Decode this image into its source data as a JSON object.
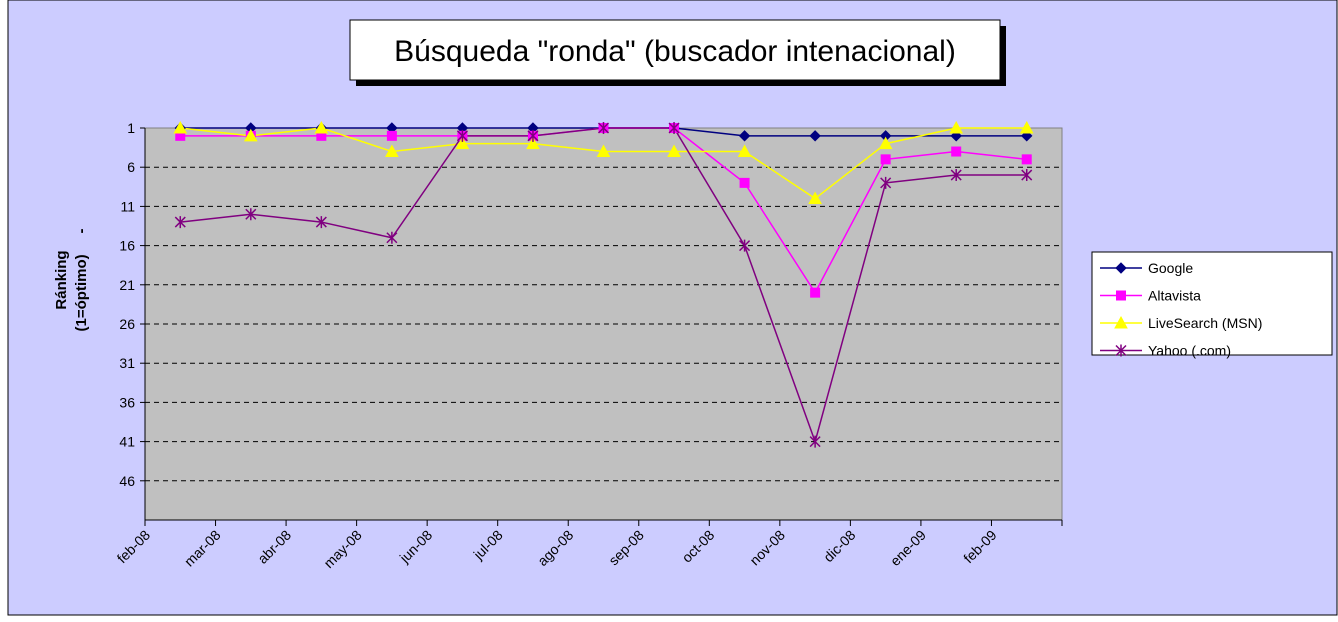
{
  "chart_data": {
    "type": "line",
    "title": "Búsqueda \"ronda\" (buscador intenacional)",
    "y_label": [
      "Ránking",
      "(1=óptimo)     -"
    ],
    "categories": [
      "feb-08",
      "mar-08",
      "abr-08",
      "may-08",
      "jun-08",
      "jul-08",
      "ago-08",
      "sep-08",
      "oct-08",
      "nov-08",
      "dic-08",
      "ene-09",
      "feb-09"
    ],
    "series": [
      {
        "name": "Google",
        "color": "#000080",
        "marker": "diamond",
        "values": [
          1,
          1,
          1,
          1,
          1,
          1,
          1,
          1,
          2,
          2,
          2,
          2,
          2
        ]
      },
      {
        "name": "Altavista",
        "color": "#ff00ff",
        "marker": "square",
        "values": [
          2,
          2,
          2,
          2,
          2,
          2,
          1,
          1,
          8,
          22,
          5,
          4,
          5
        ]
      },
      {
        "name": "LiveSearch (MSN)",
        "color": "#ffff00",
        "marker": "triangle",
        "values": [
          1,
          2,
          1,
          4,
          3,
          3,
          4,
          4,
          4,
          10,
          3,
          1,
          1
        ]
      },
      {
        "name": "Yahoo (.com)",
        "color": "#800080",
        "marker": "star",
        "values": [
          13,
          12,
          13,
          15,
          2,
          2,
          1,
          1,
          16,
          41,
          8,
          7,
          7
        ]
      }
    ],
    "ylim": [
      1,
      51
    ],
    "y_inverted": true,
    "yticks": [
      1,
      6,
      11,
      16,
      21,
      26,
      31,
      36,
      41,
      46
    ],
    "grid": true,
    "legend": "right"
  }
}
